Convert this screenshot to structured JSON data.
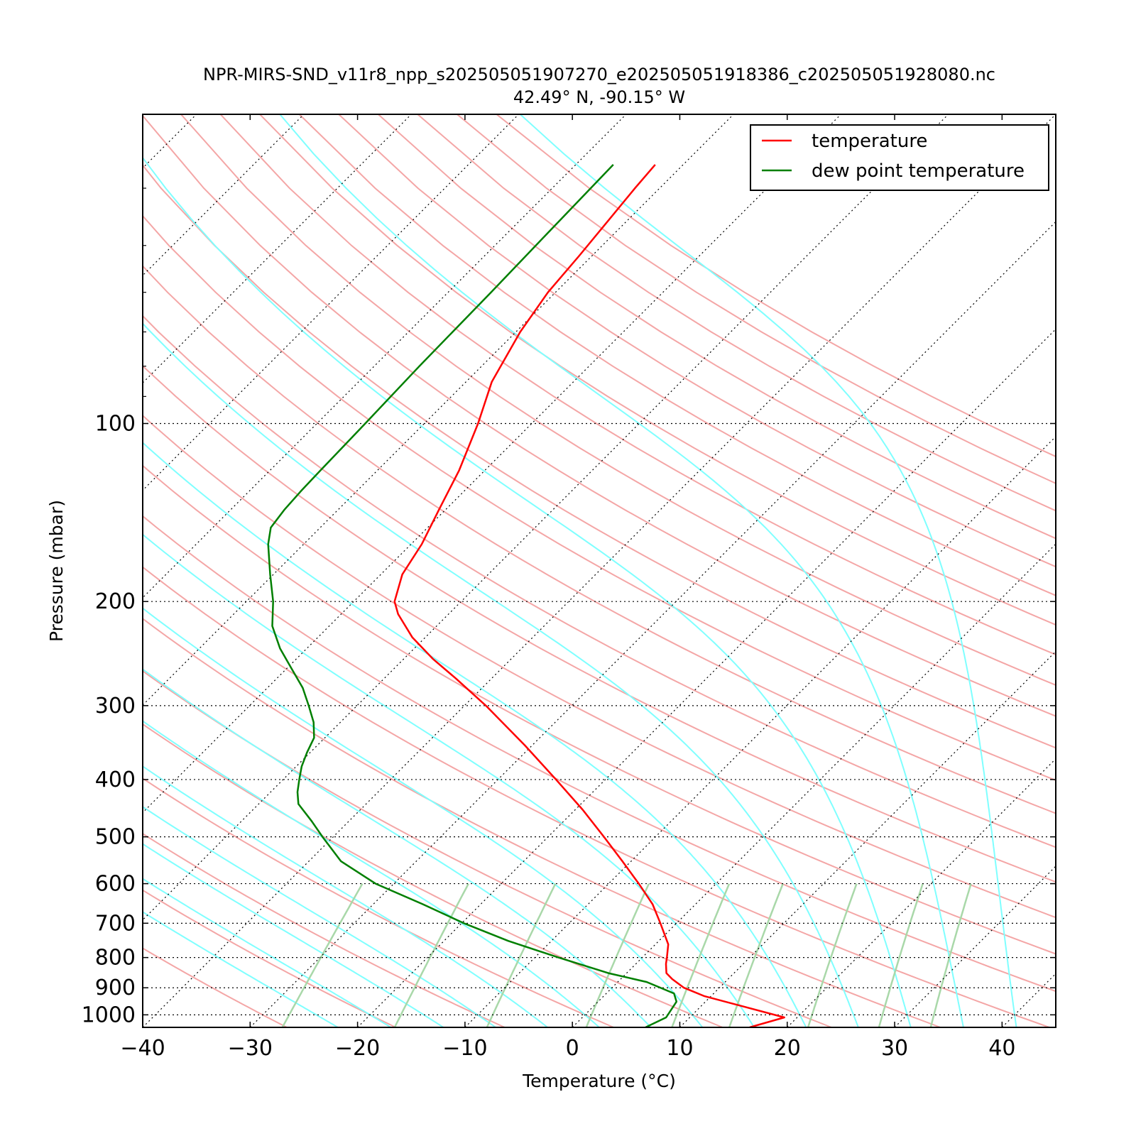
{
  "chart_data": {
    "type": "line",
    "title": "NPR-MIRS-SND_v11r8_npp_s202505051907270_e202505051918386_c202505051928080.nc",
    "subtitle": "42.49° N, -90.15° W",
    "xlabel": "Temperature (°C)",
    "ylabel": "Pressure (mbar)",
    "xlim": [
      -40,
      45
    ],
    "ylim": [
      1050,
      30
    ],
    "y_scale": "log",
    "x_ticks": [
      -40,
      -30,
      -20,
      -10,
      0,
      10,
      20,
      30,
      40
    ],
    "x_tick_labels": [
      "−40",
      "−30",
      "−20",
      "−10",
      "0",
      "10",
      "20",
      "30",
      "40"
    ],
    "y_ticks": [
      100,
      200,
      300,
      400,
      500,
      600,
      700,
      800,
      900,
      1000
    ],
    "y_tick_labels": [
      "100",
      "200",
      "300",
      "400",
      "500",
      "600",
      "700",
      "800",
      "900",
      "1000"
    ],
    "grid": "dotted horizontal isobars and skewed isotherms",
    "skew": "skew-T log-P diagram",
    "legend_position": "top-right",
    "background_lines": {
      "dry_adiabats_color": "#f4a6a6",
      "moist_adiabats_color": "#7fffff",
      "mixing_ratio_color": "#a9d8a9"
    },
    "series": [
      {
        "name": "temperature",
        "color": "#ff0000",
        "points": [
          {
            "p": 1050,
            "t": 16.5
          },
          {
            "p": 1010,
            "t": 18.8
          },
          {
            "p": 970,
            "t": 14.2
          },
          {
            "p": 930,
            "t": 9.4
          },
          {
            "p": 900,
            "t": 6.7
          },
          {
            "p": 870,
            "t": 4.8
          },
          {
            "p": 850,
            "t": 3.7
          },
          {
            "p": 820,
            "t": 2.8
          },
          {
            "p": 800,
            "t": 2.3
          },
          {
            "p": 760,
            "t": 1.2
          },
          {
            "p": 700,
            "t": -1.5
          },
          {
            "p": 650,
            "t": -4.0
          },
          {
            "p": 600,
            "t": -7.2
          },
          {
            "p": 550,
            "t": -10.8
          },
          {
            "p": 500,
            "t": -14.8
          },
          {
            "p": 450,
            "t": -19.3
          },
          {
            "p": 400,
            "t": -24.6
          },
          {
            "p": 350,
            "t": -30.7
          },
          {
            "p": 300,
            "t": -38.0
          },
          {
            "p": 270,
            "t": -43.3
          },
          {
            "p": 250,
            "t": -47.3
          },
          {
            "p": 230,
            "t": -51.2
          },
          {
            "p": 210,
            "t": -54.7
          },
          {
            "p": 200,
            "t": -56.2
          },
          {
            "p": 180,
            "t": -58.0
          },
          {
            "p": 160,
            "t": -59.0
          },
          {
            "p": 140,
            "t": -60.6
          },
          {
            "p": 120,
            "t": -62.4
          },
          {
            "p": 100,
            "t": -65.0
          },
          {
            "p": 85,
            "t": -67.6
          },
          {
            "p": 70,
            "t": -69.6
          },
          {
            "p": 60,
            "t": -70.7
          },
          {
            "p": 52,
            "t": -71.2
          },
          {
            "p": 45,
            "t": -71.8
          },
          {
            "p": 40,
            "t": -72.3
          },
          {
            "p": 36.5,
            "t": -72.6
          }
        ]
      },
      {
        "name": "dew point temperature",
        "color": "#007f00",
        "points": [
          {
            "p": 1050,
            "t": 6.8
          },
          {
            "p": 1010,
            "t": 7.8
          },
          {
            "p": 950,
            "t": 7.3
          },
          {
            "p": 920,
            "t": 6.3
          },
          {
            "p": 880,
            "t": 2.7
          },
          {
            "p": 850,
            "t": -1.7
          },
          {
            "p": 800,
            "t": -7.8
          },
          {
            "p": 750,
            "t": -14.0
          },
          {
            "p": 700,
            "t": -19.8
          },
          {
            "p": 650,
            "t": -25.4
          },
          {
            "p": 600,
            "t": -31.7
          },
          {
            "p": 550,
            "t": -37.0
          },
          {
            "p": 500,
            "t": -41.0
          },
          {
            "p": 470,
            "t": -43.5
          },
          {
            "p": 440,
            "t": -46.3
          },
          {
            "p": 420,
            "t": -47.5
          },
          {
            "p": 400,
            "t": -48.5
          },
          {
            "p": 380,
            "t": -49.5
          },
          {
            "p": 360,
            "t": -50.3
          },
          {
            "p": 340,
            "t": -51.0
          },
          {
            "p": 320,
            "t": -52.5
          },
          {
            "p": 300,
            "t": -54.5
          },
          {
            "p": 280,
            "t": -56.7
          },
          {
            "p": 260,
            "t": -59.5
          },
          {
            "p": 240,
            "t": -62.5
          },
          {
            "p": 220,
            "t": -65.3
          },
          {
            "p": 200,
            "t": -67.5
          },
          {
            "p": 180,
            "t": -70.3
          },
          {
            "p": 160,
            "t": -73.3
          },
          {
            "p": 150,
            "t": -74.6
          },
          {
            "p": 140,
            "t": -75.0
          },
          {
            "p": 130,
            "t": -75.2
          },
          {
            "p": 120,
            "t": -75.3
          },
          {
            "p": 110,
            "t": -75.4
          },
          {
            "p": 100,
            "t": -75.5
          },
          {
            "p": 80,
            "t": -75.8
          },
          {
            "p": 60,
            "t": -76.0
          },
          {
            "p": 45,
            "t": -76.3
          },
          {
            "p": 36.5,
            "t": -76.5
          }
        ]
      }
    ]
  }
}
